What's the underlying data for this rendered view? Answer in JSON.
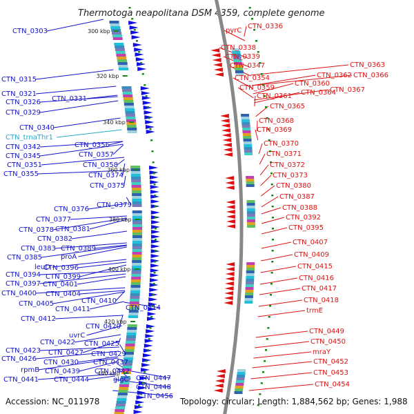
{
  "title": "Thermotoga neapolitana DSM 4359, complete genome",
  "accession": "Accession: NC_011978",
  "topology": "Topology: circular; Length: 1,884,562 bp; Genes: 1,988",
  "colors": {
    "left_label": "#1111cc",
    "right_label": "#dd1111",
    "trna_label": "#22aacc",
    "axis": "#888888",
    "tick": "#118811"
  },
  "scale_labels": [
    "300 kbp",
    "320 kbp",
    "340 kbp",
    "360 kbp",
    "380 kbp",
    "400 kbp",
    "420 kbp",
    "440 kbp"
  ],
  "left_labels": [
    "CTN_0303",
    "CTN_0315",
    "CTN_0321",
    "CTN_0326",
    "CTN_0331",
    "CTN_0329",
    "CTN_0340",
    "CTN_trnaThr1",
    "CTN_0342",
    "CTN_0356",
    "CTN_0345",
    "CTN_0357",
    "CTN_0351",
    "CTN_0358",
    "CTN_0355",
    "CTN_0374",
    "CTN_0375",
    "CTN_0379",
    "CTN_0376",
    "CTN_0377",
    "CTN_0378",
    "CTN_0381",
    "CTN_0382",
    "CTN_0383",
    "CTN_0389",
    "CTN_0385",
    "proA",
    "leuD",
    "CTN_0396",
    "CTN_0394",
    "CTN_0399",
    "CTN_0397",
    "CTN_0401",
    "CTN_0400",
    "CTN_0404",
    "CTN_0405",
    "CTN_0410",
    "CTN_0411",
    "CTN_0414",
    "CTN_0412",
    "CTN_0420",
    "uvrC",
    "CTN_0422",
    "CTN_0425",
    "CTN_0423",
    "CTN_0427",
    "CTN_0429",
    "CTN_0426",
    "CTN_0430",
    "CTN_0437",
    "rpmB",
    "CTN_0439",
    "CTN_0442",
    "CTN_0441",
    "CTN_0444",
    "glgC",
    "CTN_0447",
    "CTN_0448",
    "CTN_0456"
  ],
  "right_labels": [
    "pyrC",
    "CTN_0336",
    "CTN_0338",
    "CTN_0339",
    "CTN_0347",
    "CTN_0363",
    "CTN_0354",
    "CTN_0362",
    "CTN_0366",
    "CTN_0360",
    "CTN_0359",
    "CTN_0367",
    "CTN_0364",
    "CTN_0361",
    "CTN_0365",
    "CTN_0368",
    "CTN_0369",
    "CTN_0370",
    "CTN_0371",
    "CTN_0372",
    "CTN_0373",
    "CTN_0380",
    "CTN_0387",
    "CTN_0388",
    "CTN_0392",
    "CTN_0395",
    "CTN_0407",
    "CTN_0409",
    "CTN_0415",
    "CTN_0416",
    "CTN_0417",
    "CTN_0418",
    "trmE",
    "CTN_0449",
    "CTN_0450",
    "mraY",
    "CTN_0452",
    "CTN_0453",
    "CTN_0454"
  ]
}
